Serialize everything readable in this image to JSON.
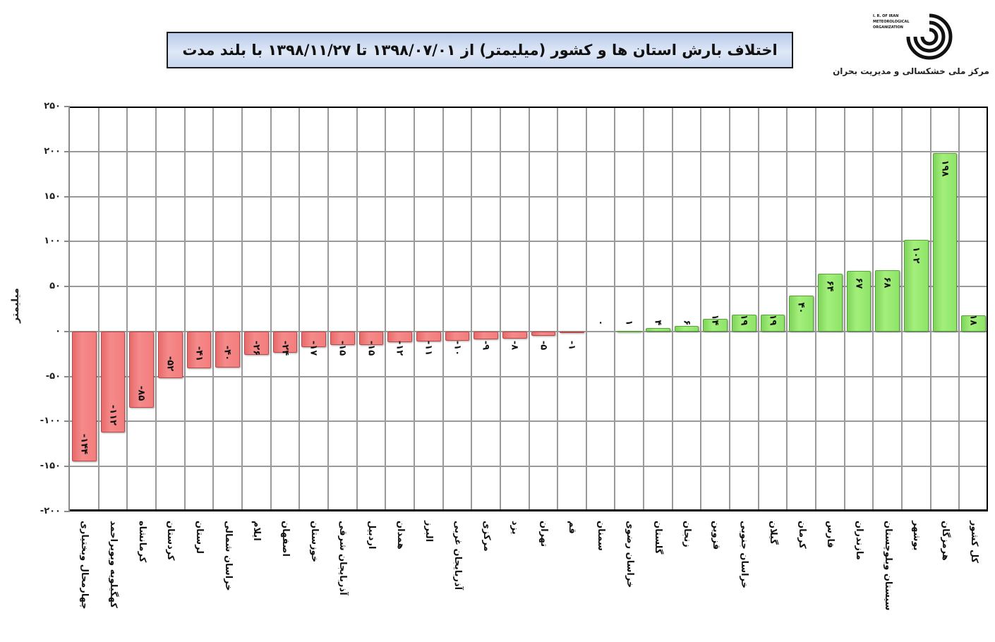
{
  "header": {
    "title": "اختلاف بارش استان ها و کشور (میلیمتر) از ۱۳۹۸/۰۷/۰۱ تا ۱۳۹۸/۱۱/۲۷ با بلند مدت",
    "logo_icon": "meteorological-organization-logo",
    "logo_text": [
      "I. R. OF IRAN",
      "METEOROLOGICAL",
      "ORGANIZATION"
    ],
    "org_name": "مرکز ملی خشکسالی و مدیریت بحران"
  },
  "colors": {
    "negative": "#f47d7d",
    "positive": "#8ee468",
    "title_bg": "#c7d6ef",
    "grid": "#9a9a9a"
  },
  "chart_data": {
    "type": "bar",
    "title": "اختلاف بارش استان ها و کشور (میلیمتر) از ۱۳۹۸/۰۷/۰۱ تا ۱۳۹۸/۱۱/۲۷ با بلند مدت",
    "xlabel": "",
    "ylabel": "میلیمتر",
    "ylim": [
      -200,
      250
    ],
    "yticks": [
      250,
      200,
      150,
      100,
      50,
      0,
      -50,
      -100,
      -150,
      -200
    ],
    "ytick_labels": [
      "۲۵۰",
      "۲۰۰",
      "۱۵۰",
      "۱۰۰",
      "۵۰",
      "۰",
      "-۵۰",
      "-۱۰۰",
      "-۱۵۰",
      "-۲۰۰"
    ],
    "grid": true,
    "legend": "none",
    "categories": [
      "چهارمحال وبختیاری",
      "کهگیلویه وبویراحمد",
      "کرمانشاه",
      "کردستان",
      "لرستان",
      "خراسان شمالی",
      "ایلام",
      "اصفهان",
      "خوزستان",
      "آذربایجان شرقی",
      "اردبیل",
      "همدان",
      "البرز",
      "آذربایجان غربی",
      "مرکزی",
      "یزد",
      "تهران",
      "قم",
      "سمنان",
      "خراسان رضوی",
      "گلستان",
      "زنجان",
      "قزوین",
      "خراسان جنوبی",
      "گیلان",
      "کرمان",
      "فارس",
      "مازندران",
      "سیستان وبلوچستان",
      "بوشهر",
      "هرمزگان",
      "کل کشور"
    ],
    "values": [
      -144,
      -112,
      -85,
      -52,
      -41,
      -40,
      -26,
      -24,
      -17,
      -15,
      -15,
      -12,
      -11,
      -10,
      -9,
      -8,
      -5,
      -1,
      0,
      1,
      4,
      6,
      14,
      19,
      19,
      40,
      64,
      67,
      68,
      102,
      198,
      18
    ],
    "value_labels": [
      "-۱۴۴",
      "-۱۱۲",
      "-۸۵",
      "-۵۲",
      "-۴۱",
      "-۴۰",
      "-۲۶",
      "-۲۴",
      "-۱۷",
      "-۱۵",
      "-۱۵",
      "-۱۲",
      "-۱۱",
      "-۱۰",
      "-۹",
      "-۸",
      "-۵",
      "-۱",
      "۰",
      "۱",
      "۴",
      "۶",
      "۱۴",
      "۱۹",
      "۱۹",
      "۴۰",
      "۶۴",
      "۶۷",
      "۶۸",
      "۱۰۲",
      "۱۹۸",
      "۱۸"
    ]
  }
}
